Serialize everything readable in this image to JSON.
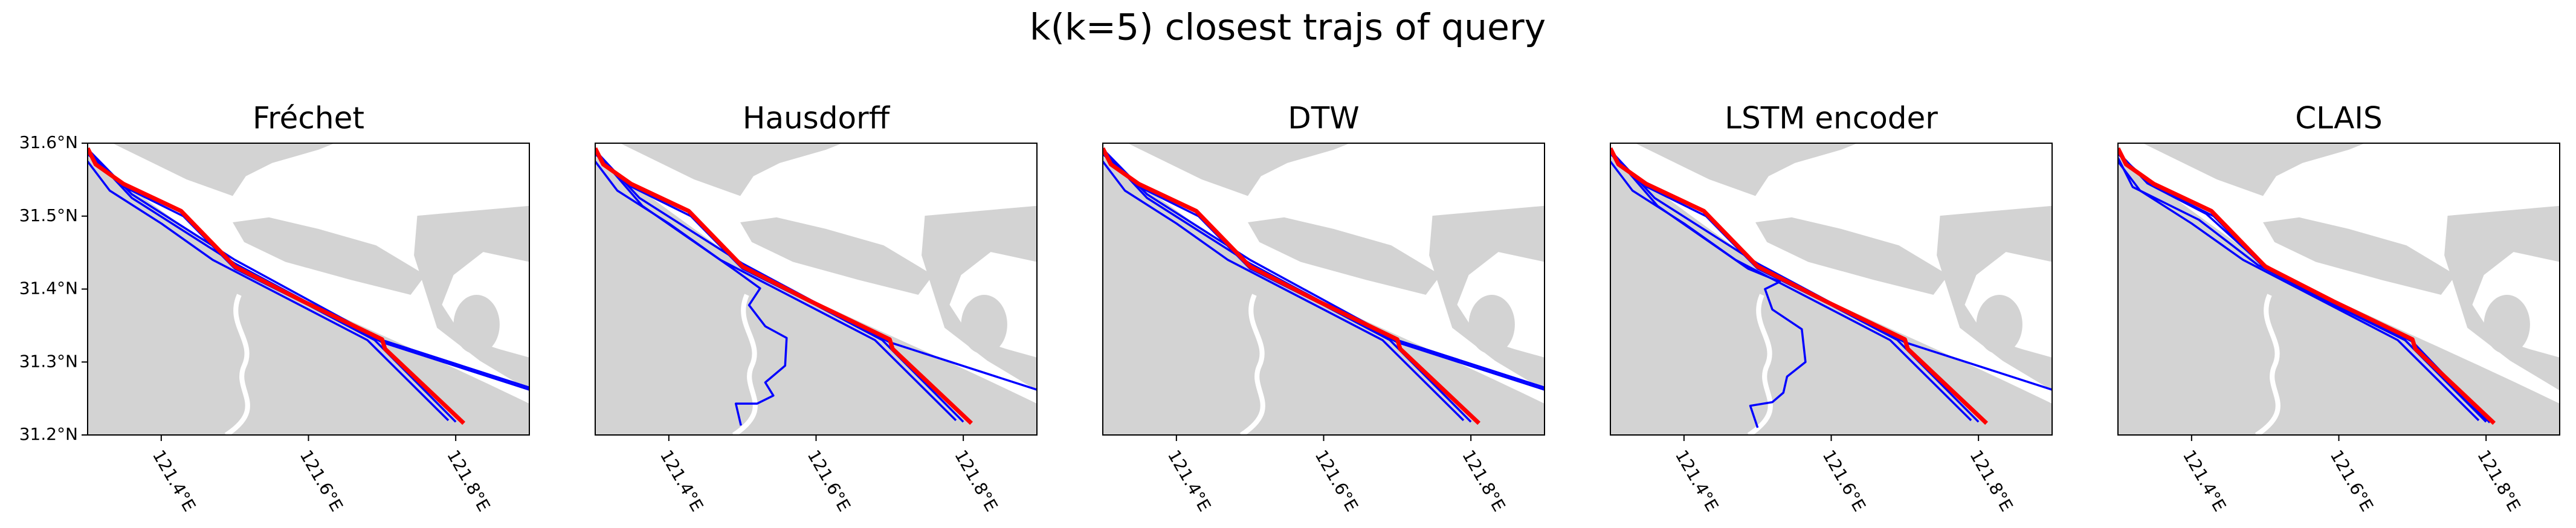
{
  "title": "k(k=5) closest trajs of query",
  "chart_data": [
    {
      "type": "line",
      "title": "Fréchet",
      "xlim": [
        121.3,
        121.9
      ],
      "ylim": [
        31.2,
        31.6
      ],
      "xticks": [
        {
          "value": 121.4,
          "label": "121.4°E"
        },
        {
          "value": 121.6,
          "label": "121.6°E"
        },
        {
          "value": 121.8,
          "label": "121.8°E"
        }
      ],
      "yticks": [
        {
          "value": 31.2,
          "label": "31.2°N"
        },
        {
          "value": 31.3,
          "label": "31.3°N"
        },
        {
          "value": 31.4,
          "label": "31.4°N"
        },
        {
          "value": 31.5,
          "label": "31.5°N"
        },
        {
          "value": 31.6,
          "label": "31.6°N"
        }
      ],
      "series": [
        {
          "color": "#0000ff",
          "x": [
            121.3,
            121.36,
            121.5,
            121.7,
            121.9
          ],
          "values": [
            31.59,
            31.525,
            31.435,
            31.327,
            31.262
          ]
        },
        {
          "color": "#0000ff",
          "x": [
            121.3,
            121.36,
            121.5,
            121.7,
            121.9
          ],
          "values": [
            31.592,
            31.53,
            31.44,
            31.33,
            31.265
          ]
        },
        {
          "color": "#0000ff",
          "x": [
            121.3,
            121.33,
            121.4,
            121.47,
            121.6,
            121.68,
            121.79
          ],
          "values": [
            31.575,
            31.535,
            31.49,
            31.44,
            31.372,
            31.33,
            31.22
          ]
        },
        {
          "color": "#0000ff",
          "x": [
            121.3,
            121.35,
            121.43,
            121.5,
            121.6,
            121.69,
            121.8
          ],
          "values": [
            31.585,
            31.54,
            31.5,
            31.428,
            31.378,
            31.33,
            31.218
          ]
        },
        {
          "color": "#ff0000",
          "x": [
            121.3,
            121.311,
            121.349,
            121.427,
            121.5,
            121.593,
            121.7,
            121.704,
            121.811
          ],
          "values": [
            31.593,
            31.571,
            31.544,
            31.507,
            31.431,
            31.383,
            31.331,
            31.318,
            31.216
          ]
        }
      ]
    },
    {
      "type": "line",
      "title": "Hausdorff",
      "xlim": [
        121.3,
        121.9
      ],
      "ylim": [
        31.2,
        31.6
      ],
      "xticks": [
        {
          "value": 121.4,
          "label": "121.4°E"
        },
        {
          "value": 121.6,
          "label": "121.6°E"
        },
        {
          "value": 121.8,
          "label": "121.8°E"
        }
      ],
      "series": [
        {
          "color": "#0000ff",
          "x": [
            121.3,
            121.364,
            121.487,
            121.524,
            121.509,
            121.531,
            121.56,
            121.558,
            121.531,
            121.542,
            121.52,
            121.491,
            121.498
          ],
          "values": [
            31.589,
            31.514,
            31.428,
            31.401,
            31.378,
            31.349,
            31.333,
            31.295,
            31.272,
            31.254,
            31.243,
            31.243,
            31.213
          ]
        },
        {
          "color": "#0000ff",
          "x": [
            121.3,
            121.36,
            121.5,
            121.7,
            121.9
          ],
          "values": [
            31.59,
            31.525,
            31.435,
            31.327,
            31.262
          ]
        },
        {
          "color": "#0000ff",
          "x": [
            121.3,
            121.33,
            121.4,
            121.47,
            121.6,
            121.68,
            121.79
          ],
          "values": [
            31.575,
            31.535,
            31.49,
            31.44,
            31.372,
            31.33,
            31.22
          ]
        },
        {
          "color": "#0000ff",
          "x": [
            121.3,
            121.35,
            121.43,
            121.5,
            121.6,
            121.69,
            121.8
          ],
          "values": [
            31.585,
            31.54,
            31.5,
            31.428,
            31.378,
            31.33,
            31.218
          ]
        },
        {
          "color": "#ff0000",
          "x": [
            121.3,
            121.311,
            121.349,
            121.427,
            121.5,
            121.593,
            121.7,
            121.704,
            121.811
          ],
          "values": [
            31.593,
            31.571,
            31.544,
            31.507,
            31.431,
            31.383,
            31.331,
            31.318,
            31.216
          ]
        }
      ]
    },
    {
      "type": "line",
      "title": "DTW",
      "xlim": [
        121.3,
        121.9
      ],
      "ylim": [
        31.2,
        31.6
      ],
      "xticks": [
        {
          "value": 121.4,
          "label": "121.4°E"
        },
        {
          "value": 121.6,
          "label": "121.6°E"
        },
        {
          "value": 121.8,
          "label": "121.8°E"
        }
      ],
      "series": [
        {
          "color": "#0000ff",
          "x": [
            121.3,
            121.36,
            121.5,
            121.7,
            121.9
          ],
          "values": [
            31.59,
            31.525,
            31.435,
            31.327,
            31.262
          ]
        },
        {
          "color": "#0000ff",
          "x": [
            121.3,
            121.36,
            121.5,
            121.7,
            121.9
          ],
          "values": [
            31.592,
            31.53,
            31.44,
            31.33,
            31.265
          ]
        },
        {
          "color": "#0000ff",
          "x": [
            121.3,
            121.33,
            121.4,
            121.47,
            121.6,
            121.68,
            121.79
          ],
          "values": [
            31.575,
            31.535,
            31.49,
            31.44,
            31.372,
            31.33,
            31.22
          ]
        },
        {
          "color": "#0000ff",
          "x": [
            121.3,
            121.35,
            121.43,
            121.5,
            121.6,
            121.69,
            121.8
          ],
          "values": [
            31.585,
            31.54,
            31.5,
            31.428,
            31.378,
            31.33,
            31.218
          ]
        },
        {
          "color": "#ff0000",
          "x": [
            121.3,
            121.311,
            121.349,
            121.427,
            121.5,
            121.593,
            121.7,
            121.704,
            121.811
          ],
          "values": [
            31.593,
            31.571,
            31.544,
            31.507,
            31.431,
            31.383,
            31.331,
            31.318,
            31.216
          ]
        }
      ]
    },
    {
      "type": "line",
      "title": "LSTM encoder",
      "xlim": [
        121.3,
        121.9
      ],
      "ylim": [
        31.2,
        31.6
      ],
      "xticks": [
        {
          "value": 121.4,
          "label": "121.4°E"
        },
        {
          "value": 121.6,
          "label": "121.6°E"
        },
        {
          "value": 121.8,
          "label": "121.8°E"
        }
      ],
      "series": [
        {
          "color": "#0000ff",
          "x": [
            121.3,
            121.364,
            121.487,
            121.53,
            121.51,
            121.52,
            121.56,
            121.565,
            121.54,
            121.535,
            121.52,
            121.49,
            121.5
          ],
          "values": [
            31.589,
            31.514,
            31.428,
            31.41,
            31.4,
            31.372,
            31.345,
            31.3,
            31.28,
            31.258,
            31.245,
            31.24,
            31.21
          ]
        },
        {
          "color": "#0000ff",
          "x": [
            121.3,
            121.36,
            121.5,
            121.7,
            121.9
          ],
          "values": [
            31.59,
            31.525,
            31.435,
            31.327,
            31.262
          ]
        },
        {
          "color": "#0000ff",
          "x": [
            121.3,
            121.33,
            121.4,
            121.47,
            121.6,
            121.68,
            121.79
          ],
          "values": [
            31.575,
            31.535,
            31.49,
            31.44,
            31.372,
            31.33,
            31.22
          ]
        },
        {
          "color": "#0000ff",
          "x": [
            121.3,
            121.35,
            121.43,
            121.5,
            121.6,
            121.69,
            121.8
          ],
          "values": [
            31.585,
            31.54,
            31.5,
            31.428,
            31.378,
            31.33,
            31.218
          ]
        },
        {
          "color": "#ff0000",
          "x": [
            121.3,
            121.311,
            121.349,
            121.427,
            121.5,
            121.593,
            121.7,
            121.704,
            121.811
          ],
          "values": [
            31.593,
            31.571,
            31.544,
            31.507,
            31.431,
            31.383,
            31.331,
            31.318,
            31.216
          ]
        }
      ]
    },
    {
      "type": "line",
      "title": "CLAIS",
      "xlim": [
        121.3,
        121.9
      ],
      "ylim": [
        31.2,
        31.6
      ],
      "xticks": [
        {
          "value": 121.4,
          "label": "121.4°E"
        },
        {
          "value": 121.6,
          "label": "121.6°E"
        },
        {
          "value": 121.8,
          "label": "121.8°E"
        }
      ],
      "series": [
        {
          "color": "#0000ff",
          "x": [
            121.3,
            121.33,
            121.4,
            121.47,
            121.6,
            121.68,
            121.79
          ],
          "values": [
            31.575,
            31.535,
            31.49,
            31.44,
            31.372,
            31.33,
            31.22
          ]
        },
        {
          "color": "#0000ff",
          "x": [
            121.3,
            121.35,
            121.43,
            121.5,
            121.6,
            121.69,
            121.8
          ],
          "values": [
            31.585,
            31.54,
            31.5,
            31.428,
            31.378,
            31.33,
            31.218
          ]
        },
        {
          "color": "#0000ff",
          "x": [
            121.3,
            121.34,
            121.42,
            121.5,
            121.6,
            121.7,
            121.805
          ],
          "values": [
            31.588,
            31.545,
            31.503,
            31.43,
            31.38,
            31.328,
            31.217
          ]
        },
        {
          "color": "#0000ff",
          "x": [
            121.3,
            121.32,
            121.41,
            121.49,
            121.6,
            121.69,
            121.8
          ],
          "values": [
            31.58,
            31.54,
            31.495,
            31.433,
            31.375,
            31.33,
            31.219
          ]
        },
        {
          "color": "#ff0000",
          "x": [
            121.3,
            121.311,
            121.349,
            121.427,
            121.5,
            121.593,
            121.7,
            121.704,
            121.811
          ],
          "values": [
            31.593,
            31.571,
            31.544,
            31.507,
            31.431,
            31.383,
            31.331,
            31.318,
            31.216
          ]
        }
      ]
    }
  ]
}
